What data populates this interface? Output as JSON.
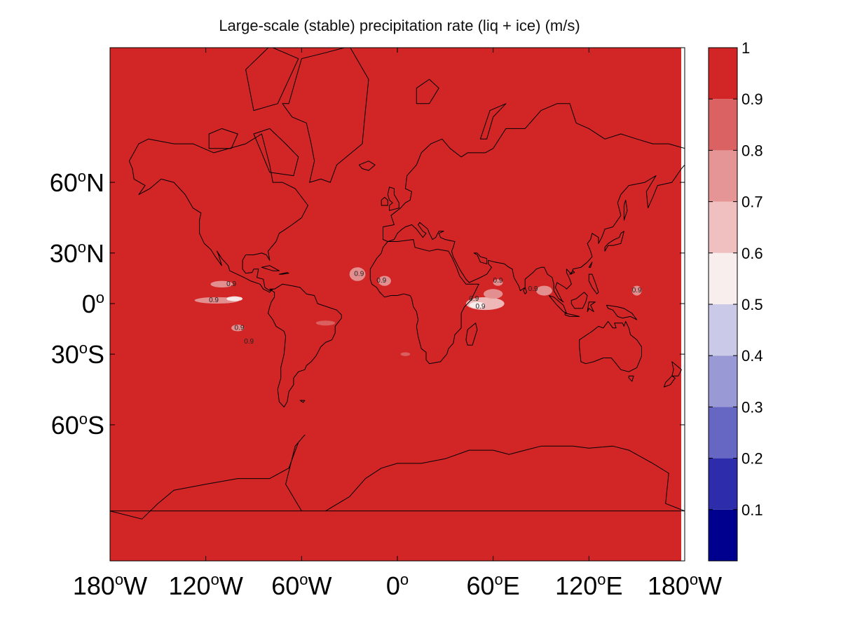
{
  "chart_data": {
    "type": "heatmap",
    "title": "Large-scale (stable) precipitation rate (liq + ice) (m/s)",
    "projection": "mercator",
    "x_ticks": [
      {
        "value": -180,
        "label": "180",
        "hemi": "W"
      },
      {
        "value": -120,
        "label": "120",
        "hemi": "W"
      },
      {
        "value": -60,
        "label": "60",
        "hemi": "W"
      },
      {
        "value": 0,
        "label": "0",
        "hemi": ""
      },
      {
        "value": 60,
        "label": "60",
        "hemi": "E"
      },
      {
        "value": 120,
        "label": "120",
        "hemi": "E"
      },
      {
        "value": 180,
        "label": "180",
        "hemi": "W"
      }
    ],
    "y_ticks": [
      {
        "value": 60,
        "label": "60",
        "hemi": "N"
      },
      {
        "value": 30,
        "label": "30",
        "hemi": "N"
      },
      {
        "value": 0,
        "label": "0",
        "hemi": ""
      },
      {
        "value": -30,
        "label": "30",
        "hemi": "S"
      },
      {
        "value": -60,
        "label": "60",
        "hemi": "S"
      }
    ],
    "colorbar": {
      "range": [
        0,
        1
      ],
      "tick_labels": [
        "1",
        "0.9",
        "0.8",
        "0.7",
        "0.6",
        "0.5",
        "0.4",
        "0.3",
        "0.2",
        "0.1"
      ],
      "tick_values": [
        1,
        0.9,
        0.8,
        0.7,
        0.6,
        0.5,
        0.4,
        0.3,
        0.2,
        0.1
      ],
      "levels": [
        {
          "from": 0.0,
          "to": 0.1,
          "color": "#00008f"
        },
        {
          "from": 0.1,
          "to": 0.2,
          "color": "#2d2dab"
        },
        {
          "from": 0.2,
          "to": 0.3,
          "color": "#6666c3"
        },
        {
          "from": 0.3,
          "to": 0.4,
          "color": "#9999d6"
        },
        {
          "from": 0.4,
          "to": 0.5,
          "color": "#cacae8"
        },
        {
          "from": 0.5,
          "to": 0.6,
          "color": "#f8eeee"
        },
        {
          "from": 0.6,
          "to": 0.7,
          "color": "#f0c0c0"
        },
        {
          "from": 0.7,
          "to": 0.8,
          "color": "#e59595"
        },
        {
          "from": 0.8,
          "to": 0.9,
          "color": "#da6262"
        },
        {
          "from": 0.9,
          "to": 1.0,
          "color": "#d22626"
        }
      ]
    },
    "background_value": 1.0,
    "background_color": "#d22626",
    "contour_label": "0.9",
    "anomalies": [
      {
        "lon": -113,
        "lat": 2,
        "rlon": 14,
        "rlat": 2,
        "value": 0.72
      },
      {
        "lon": -102,
        "lat": 3,
        "rlon": 5,
        "rlat": 1.5,
        "value": 0.55
      },
      {
        "lon": -110,
        "lat": 12,
        "rlon": 7,
        "rlat": 2,
        "value": 0.72
      },
      {
        "lon": -100,
        "lat": -15,
        "rlon": 4,
        "rlat": 2,
        "value": 0.75
      },
      {
        "lon": -25,
        "lat": 18,
        "rlon": 5,
        "rlat": 4,
        "value": 0.78
      },
      {
        "lon": -8,
        "lat": 14,
        "rlon": 4,
        "rlat": 3,
        "value": 0.8
      },
      {
        "lon": 55,
        "lat": 0,
        "rlon": 12,
        "rlat": 4,
        "value": 0.7
      },
      {
        "lon": 50,
        "lat": -1,
        "rlon": 5,
        "rlat": 2,
        "value": 0.55
      },
      {
        "lon": 60,
        "lat": 6,
        "rlon": 6,
        "rlat": 3,
        "value": 0.8
      },
      {
        "lon": 63,
        "lat": 13,
        "rlon": 3,
        "rlat": 2,
        "value": 0.75
      },
      {
        "lon": 92,
        "lat": 8,
        "rlon": 5,
        "rlat": 3,
        "value": 0.72
      },
      {
        "lon": 150,
        "lat": 8,
        "rlon": 3,
        "rlat": 3,
        "value": 0.8
      },
      {
        "lon": -45,
        "lat": -12,
        "rlon": 6,
        "rlat": 1.5,
        "value": 0.85
      },
      {
        "lon": 5,
        "lat": -30,
        "rlon": 3,
        "rlat": 1,
        "value": 0.85
      }
    ]
  }
}
